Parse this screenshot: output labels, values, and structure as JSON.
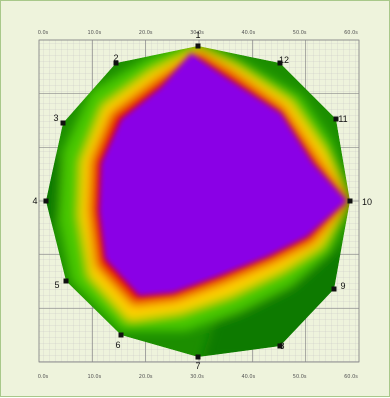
{
  "scale": {
    "top_ticks": [
      "0.0s",
      "10.0s",
      "20.0s",
      "30.0s",
      "40.0s",
      "50.0s",
      "60.0s"
    ],
    "bottom_ticks": [
      "0.0s",
      "10.0s",
      "20.0s",
      "30.0s",
      "40.0s",
      "50.0s",
      "60.0s"
    ]
  },
  "sensors": [
    "1",
    "2",
    "3",
    "4",
    "5",
    "6",
    "7",
    "8",
    "9",
    "10",
    "11",
    "12"
  ],
  "colors": {
    "background": "#eef3dc",
    "grid": "#9a9a9a",
    "core": "#8a00e6",
    "red": "#e60000",
    "yellow": "#ffd400",
    "green": "#3ec000",
    "dark_green": "#0f7a00"
  }
}
